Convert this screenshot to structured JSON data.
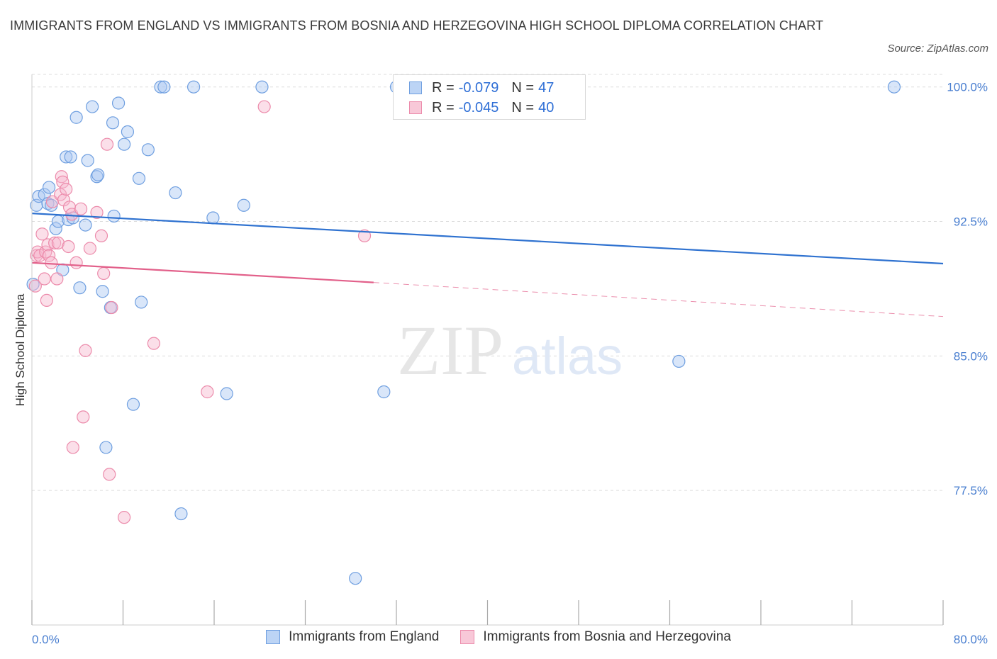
{
  "title": "IMMIGRANTS FROM ENGLAND VS IMMIGRANTS FROM BOSNIA AND HERZEGOVINA HIGH SCHOOL DIPLOMA CORRELATION CHART",
  "source": "Source: ZipAtlas.com",
  "watermark": {
    "zip": "ZIP",
    "atlas": "atlas"
  },
  "colors": {
    "england_fill": "#aac8f2",
    "england_stroke": "#6f9fe0",
    "england_line": "#2f72d0",
    "bosnia_fill": "#f6b9ce",
    "bosnia_stroke": "#ec8bab",
    "bosnia_line": "#e2608a",
    "grid": "#dcdcdc",
    "tick_text": "#4a7fd0"
  },
  "legend": {
    "rows": [
      {
        "r_label": "R =",
        "r_value": "-0.079",
        "n_label": "N =",
        "n_value": "47"
      },
      {
        "r_label": "R =",
        "r_value": "-0.045",
        "n_label": "N =",
        "n_value": "40"
      }
    ]
  },
  "bottom_legend": {
    "england": "Immigrants from England",
    "bosnia": "Immigrants from Bosnia and Herzegovina"
  },
  "chart_data": {
    "type": "scatter",
    "title": "IMMIGRANTS FROM ENGLAND VS IMMIGRANTS FROM BOSNIA AND HERZEGOVINA HIGH SCHOOL DIPLOMA CORRELATION CHART",
    "xlabel": "",
    "ylabel": "High School Diploma",
    "xlim": [
      0,
      80
    ],
    "ylim": [
      70,
      100.7
    ],
    "x_tick_labels": [
      {
        "value": 0,
        "label": "0.0%"
      },
      {
        "value": 80,
        "label": "80.0%"
      }
    ],
    "y_tick_labels": [
      {
        "value": 100,
        "label": "100.0%"
      },
      {
        "value": 92.5,
        "label": "92.5%"
      },
      {
        "value": 85,
        "label": "85.0%"
      },
      {
        "value": 77.5,
        "label": "77.5%"
      }
    ],
    "series": [
      {
        "name": "Immigrants from England",
        "points": [
          [
            0.4,
            93.4
          ],
          [
            0.6,
            93.9
          ],
          [
            1.1,
            94.0
          ],
          [
            1.4,
            93.5
          ],
          [
            1.5,
            94.4
          ],
          [
            1.7,
            93.4
          ],
          [
            2.1,
            92.1
          ],
          [
            2.3,
            92.5
          ],
          [
            2.7,
            89.8
          ],
          [
            3.0,
            96.1
          ],
          [
            3.2,
            92.6
          ],
          [
            3.4,
            96.1
          ],
          [
            3.6,
            92.7
          ],
          [
            3.9,
            98.3
          ],
          [
            4.2,
            88.8
          ],
          [
            4.7,
            92.3
          ],
          [
            4.9,
            95.9
          ],
          [
            5.3,
            98.9
          ],
          [
            5.7,
            95.0
          ],
          [
            5.8,
            95.1
          ],
          [
            6.2,
            88.6
          ],
          [
            6.5,
            79.9
          ],
          [
            6.9,
            87.7
          ],
          [
            7.1,
            98.0
          ],
          [
            7.2,
            92.8
          ],
          [
            7.6,
            99.1
          ],
          [
            8.1,
            96.8
          ],
          [
            8.4,
            97.5
          ],
          [
            8.9,
            82.3
          ],
          [
            9.4,
            94.9
          ],
          [
            9.6,
            88.0
          ],
          [
            10.2,
            96.5
          ],
          [
            11.3,
            100.0
          ],
          [
            11.6,
            100.0
          ],
          [
            12.6,
            94.1
          ],
          [
            13.1,
            76.2
          ],
          [
            14.2,
            100.0
          ],
          [
            15.9,
            92.7
          ],
          [
            17.1,
            82.9
          ],
          [
            18.6,
            93.4
          ],
          [
            20.2,
            100.0
          ],
          [
            28.4,
            72.6
          ],
          [
            30.9,
            83.0
          ],
          [
            32.0,
            100.0
          ],
          [
            56.8,
            84.7
          ],
          [
            75.7,
            100.0
          ],
          [
            0.1,
            89.0
          ]
        ]
      },
      {
        "name": "Immigrants from Bosnia and Herzegovina",
        "points": [
          [
            0.3,
            88.9
          ],
          [
            0.4,
            90.6
          ],
          [
            0.5,
            90.8
          ],
          [
            0.7,
            90.6
          ],
          [
            0.9,
            91.8
          ],
          [
            1.1,
            89.3
          ],
          [
            1.2,
            90.8
          ],
          [
            1.3,
            88.1
          ],
          [
            1.4,
            91.2
          ],
          [
            1.5,
            90.6
          ],
          [
            1.7,
            90.2
          ],
          [
            1.8,
            93.6
          ],
          [
            2.0,
            91.3
          ],
          [
            2.2,
            89.3
          ],
          [
            2.3,
            91.3
          ],
          [
            2.5,
            94.0
          ],
          [
            2.6,
            95.0
          ],
          [
            2.7,
            94.7
          ],
          [
            2.8,
            93.7
          ],
          [
            3.0,
            94.3
          ],
          [
            3.2,
            91.1
          ],
          [
            3.3,
            93.3
          ],
          [
            3.5,
            92.9
          ],
          [
            3.6,
            79.9
          ],
          [
            3.9,
            90.2
          ],
          [
            4.3,
            93.2
          ],
          [
            4.5,
            81.6
          ],
          [
            4.7,
            85.3
          ],
          [
            5.1,
            91.0
          ],
          [
            5.7,
            93.0
          ],
          [
            6.1,
            91.7
          ],
          [
            6.3,
            89.6
          ],
          [
            6.6,
            96.8
          ],
          [
            6.8,
            78.4
          ],
          [
            7.0,
            87.7
          ],
          [
            8.1,
            76.0
          ],
          [
            10.7,
            85.7
          ],
          [
            15.4,
            83.0
          ],
          [
            20.4,
            98.9
          ],
          [
            29.2,
            91.7
          ]
        ]
      }
    ],
    "trend_lines": [
      {
        "series": "Immigrants from England",
        "x0": 0,
        "y0": 92.95,
        "x1": 80,
        "y1": 90.15,
        "style": "solid"
      },
      {
        "series": "Immigrants from Bosnia and Herzegovina",
        "x0": 0,
        "y0": 90.2,
        "x1": 30,
        "y1": 89.1,
        "style": "solid",
        "dashed_to_x": 80,
        "dashed_to_y": 87.2
      }
    ],
    "legend": [
      {
        "name": "Immigrants from England",
        "R": "-0.079",
        "N": "47"
      },
      {
        "name": "Immigrants from Bosnia and Herzegovina",
        "R": "-0.045",
        "N": "40"
      }
    ],
    "grid": true,
    "legend_position": "top-center"
  }
}
